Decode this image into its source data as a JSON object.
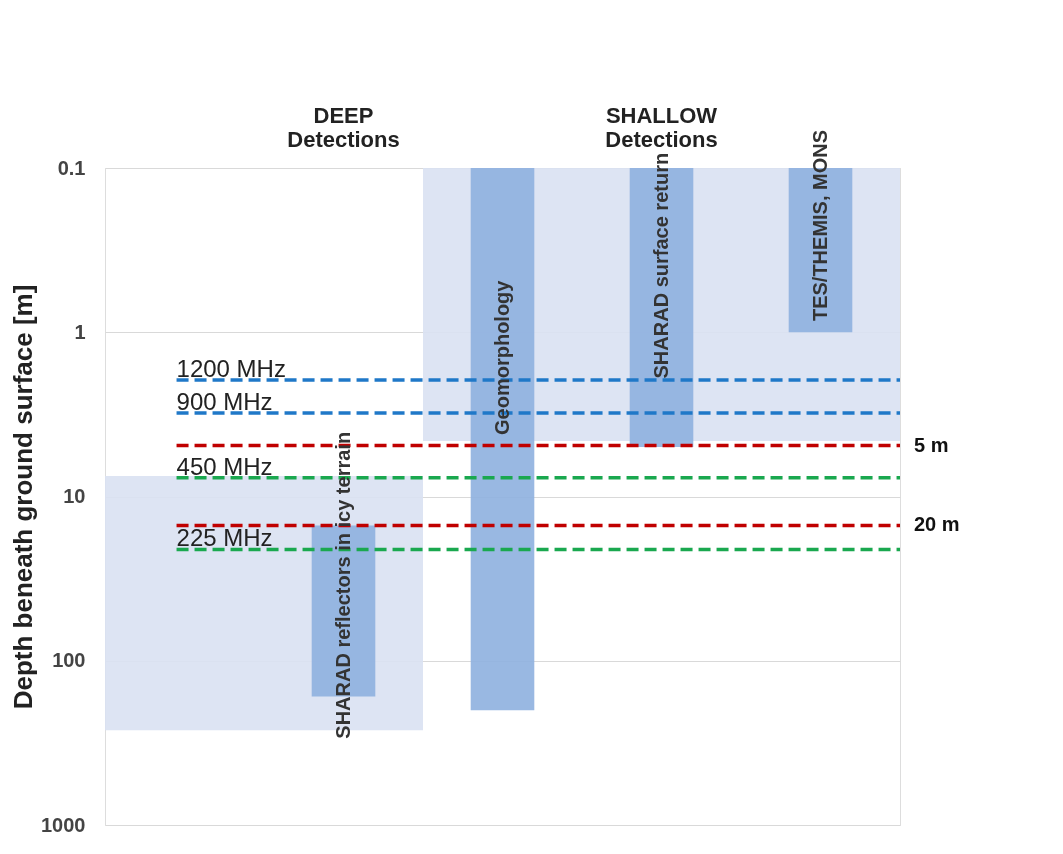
{
  "chart_data": {
    "type": "bar",
    "ylabel": "Depth beneath ground surface [m]",
    "categories": [
      null,
      null,
      null,
      null,
      null
    ],
    "series": [
      {
        "color": "#d9e1f2",
        "base": [
          7.5,
          7.5,
          0.1,
          0.1,
          0.1
        ],
        "values": [
          257.5,
          257.5,
          4.5,
          4.5,
          4.5
        ]
      },
      {
        "color": "#8eb0df",
        "base": [
          null,
          15,
          0.1,
          0.1,
          0.1
        ],
        "values": [
          null,
          150,
          199.9,
          4.9,
          0.9
        ]
      }
    ],
    "log": "y",
    "ylim": [
      1000,
      0.1
    ],
    "yticks": [
      0.1,
      1,
      10,
      100,
      1000
    ],
    "grid": "y",
    "tick_labels": "y",
    "ref_lines": [
      {
        "axis": "y",
        "value": 1.95,
        "label": "1200 MHz",
        "color": "#1f78c8",
        "line_style": "dashed"
      },
      {
        "axis": "y",
        "value": 3.1,
        "label": "900 MHz",
        "color": "#1f78c8",
        "line_style": "dashed"
      },
      {
        "axis": "y",
        "value": 4.9,
        "label": "5 m",
        "color": "#c00000",
        "line_style": "dashed"
      },
      {
        "axis": "y",
        "value": 7.7,
        "label": "450 MHz",
        "color": "#1aa84f",
        "line_style": "dashed"
      },
      {
        "axis": "y",
        "value": 15,
        "label": "20 m",
        "color": "#c00000",
        "line_style": "dashed"
      },
      {
        "axis": "y",
        "value": 21,
        "label": "225 MHz",
        "color": "#1aa84f",
        "line_style": "dashed"
      }
    ],
    "annotations": [
      "DEEP\nDetections",
      "SHALLOW\nDetections",
      "SHARAD reflectors in icy terrain",
      "Geomorphology",
      "SHARAD surface return",
      "TES/THEMIS, MONS"
    ]
  }
}
